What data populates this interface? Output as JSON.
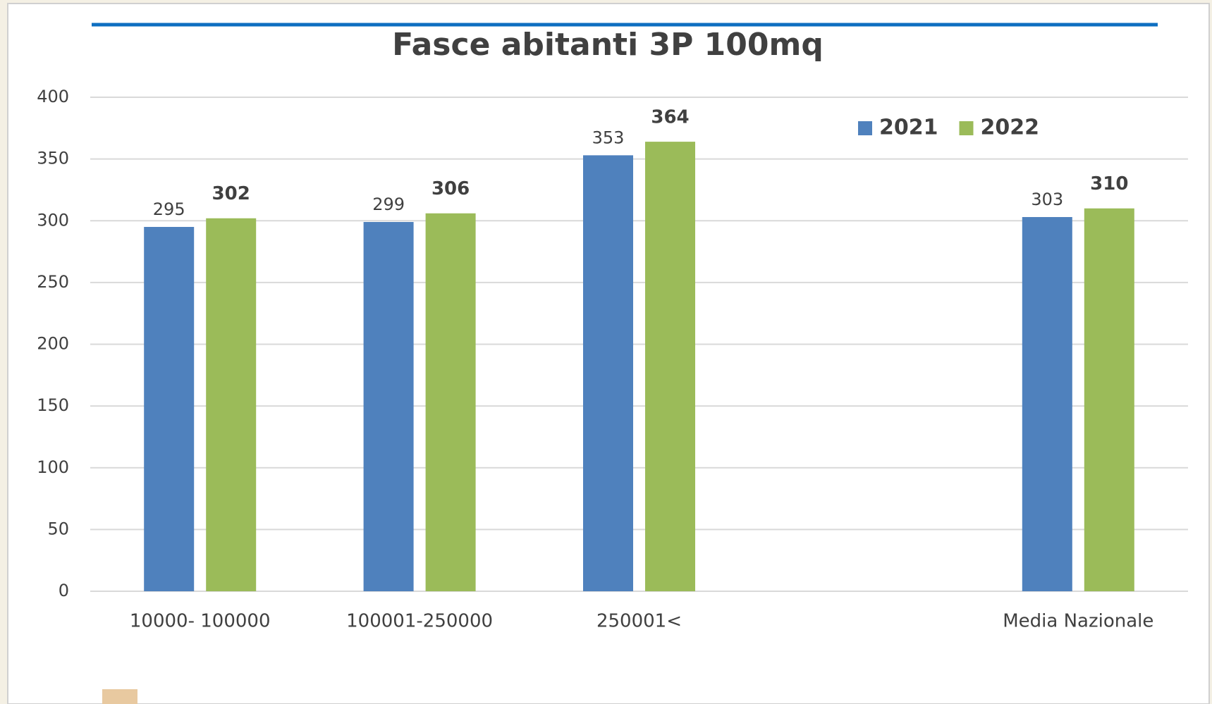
{
  "chart_data": {
    "type": "bar",
    "title": "Fasce abitanti 3P 100mq",
    "categories": [
      "10000- 100000",
      "100001-250000",
      "250001<",
      null,
      "Media Nazionale"
    ],
    "series": [
      {
        "name": "2021",
        "color": "#4f81bd",
        "values": [
          295,
          299,
          353,
          null,
          303
        ]
      },
      {
        "name": "2022",
        "color": "#9bbb59",
        "values": [
          302,
          306,
          364,
          null,
          310
        ]
      }
    ],
    "ylim": [
      0,
      400
    ],
    "yticks": [
      0,
      50,
      100,
      150,
      200,
      250,
      300,
      350,
      400
    ],
    "grid": true,
    "legend": "top-right"
  }
}
